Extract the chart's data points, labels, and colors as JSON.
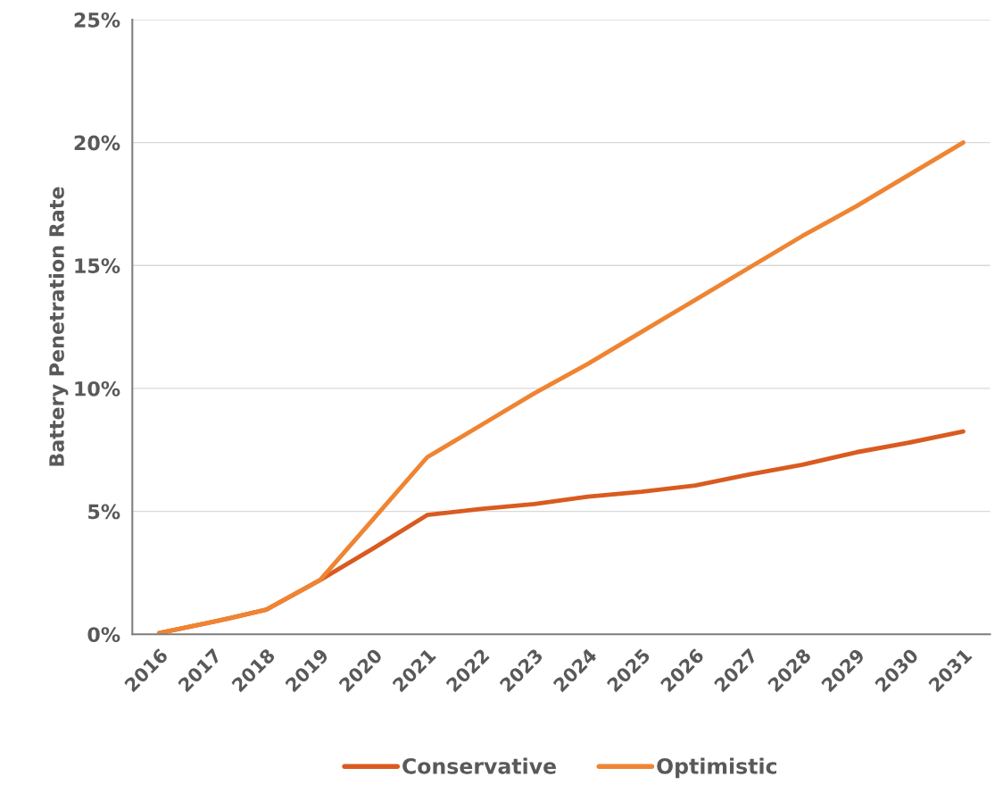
{
  "chart_data": {
    "type": "line",
    "ylabel": "Battery Penetration Rate",
    "categories": [
      "2016",
      "2017",
      "2018",
      "2019",
      "2020",
      "2021",
      "2022",
      "2023",
      "2024",
      "2025",
      "2026",
      "2027",
      "2028",
      "2029",
      "2030",
      "2031"
    ],
    "series": [
      {
        "name": "Conservative",
        "color": "#d95b20",
        "values": [
          0.05,
          0.5,
          1.0,
          2.2,
          3.5,
          4.85,
          5.1,
          5.3,
          5.6,
          5.8,
          6.05,
          6.5,
          6.9,
          7.4,
          7.8,
          8.25
        ]
      },
      {
        "name": "Optimistic",
        "color": "#ef8432",
        "values": [
          0.05,
          0.5,
          1.0,
          2.2,
          4.7,
          7.2,
          8.5,
          9.8,
          11.0,
          12.3,
          13.6,
          14.9,
          16.2,
          17.4,
          18.7,
          20.0
        ]
      }
    ],
    "ylim": [
      0,
      25
    ],
    "yticks": [
      {
        "value": 0,
        "label": "0%"
      },
      {
        "value": 5,
        "label": "5%"
      },
      {
        "value": 10,
        "label": "10%"
      },
      {
        "value": 15,
        "label": "15%"
      },
      {
        "value": 20,
        "label": "20%"
      },
      {
        "value": 25,
        "label": "25%"
      }
    ],
    "grid": "y",
    "legend": "bottom",
    "marker": "none",
    "line_style": "solid"
  }
}
